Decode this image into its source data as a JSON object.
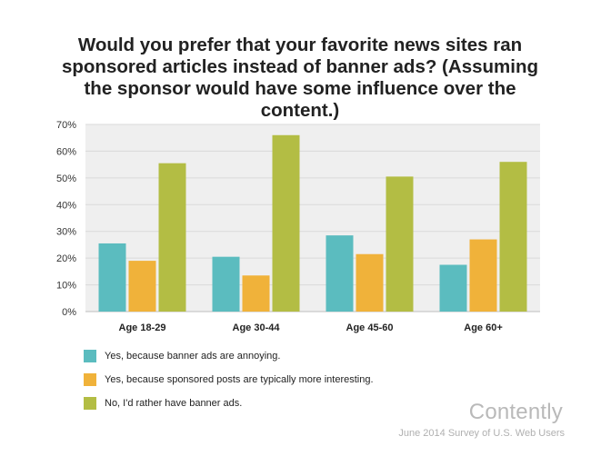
{
  "chart_data": {
    "type": "bar",
    "title": "Would you prefer that your favorite news sites ran sponsored articles instead of banner ads? (Assuming the sponsor would have some influence over the content.)",
    "categories": [
      "Age 18-29",
      "Age 30-44",
      "Age 45-60",
      "Age 60+"
    ],
    "series": [
      {
        "name": "Yes, because banner ads are annoying.",
        "color": "#5bbcbf",
        "values": [
          25.5,
          20.5,
          28.5,
          17.5
        ]
      },
      {
        "name": "Yes, because sponsored posts are typically more interesting.",
        "color": "#f0b23a",
        "values": [
          19,
          13.5,
          21.5,
          27
        ]
      },
      {
        "name": "No, I'd rather have banner ads.",
        "color": "#b3bd44",
        "values": [
          55.5,
          66,
          50.5,
          56
        ]
      }
    ],
    "ylim": [
      0,
      70
    ],
    "yticks": [
      "0%",
      "10%",
      "20%",
      "30%",
      "40%",
      "50%",
      "60%",
      "70%"
    ],
    "grid": true,
    "legend_position": "bottom-left"
  },
  "branding": {
    "name": "Contently",
    "source": "June 2014 Survey of U.S. Web Users"
  }
}
